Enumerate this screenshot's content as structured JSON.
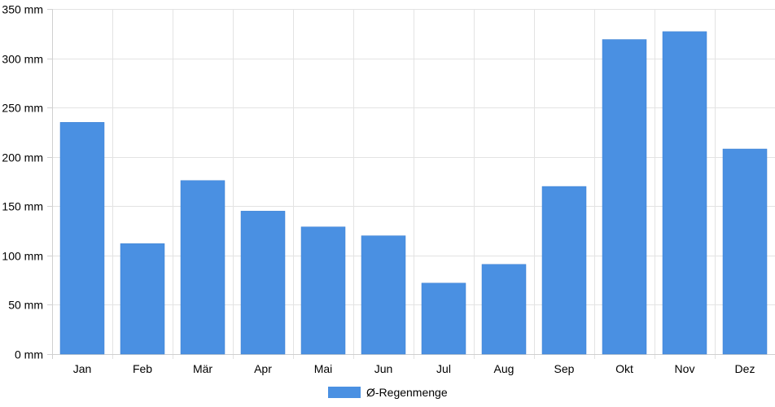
{
  "chart_data": {
    "type": "bar",
    "title": "",
    "xlabel": "",
    "ylabel": "",
    "categories": [
      "Jan",
      "Feb",
      "Mär",
      "Apr",
      "Mai",
      "Jun",
      "Jul",
      "Aug",
      "Sep",
      "Okt",
      "Nov",
      "Dez"
    ],
    "series": [
      {
        "name": "Ø-Regenmenge",
        "values": [
          235,
          112,
          176,
          145,
          129,
          120,
          72,
          91,
          170,
          319,
          327,
          208
        ],
        "color": "#4a90e2"
      }
    ],
    "ylim": [
      0,
      350
    ],
    "yticks": [
      0,
      50,
      100,
      150,
      200,
      250,
      300,
      350
    ],
    "ytick_suffix": " mm",
    "grid": true,
    "legend_position": "bottom-center"
  }
}
